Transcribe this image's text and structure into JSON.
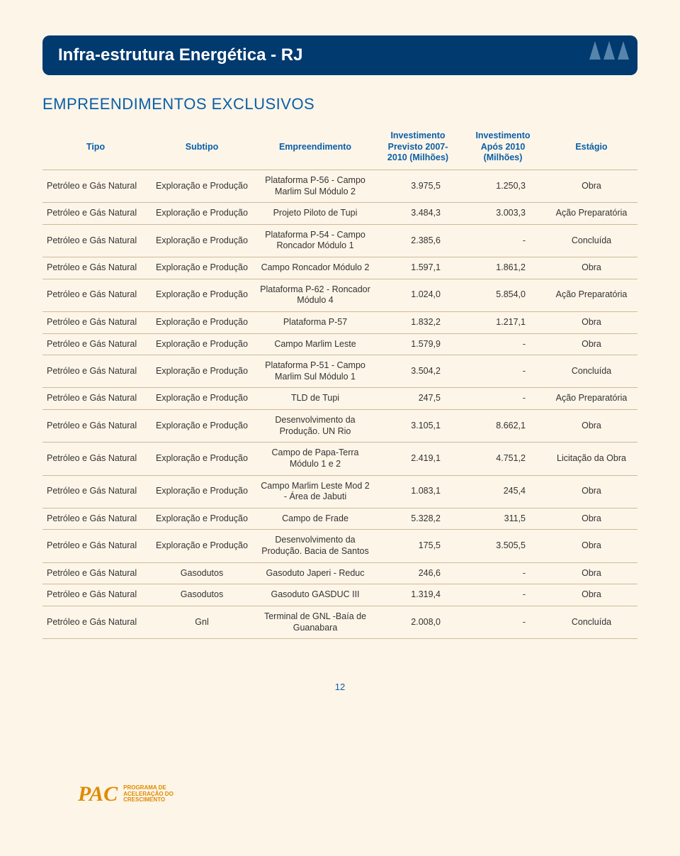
{
  "header_title": "Infra-estrutura Energética - RJ",
  "sub_heading": "EMPREENDIMENTOS EXCLUSIVOS",
  "columns": {
    "tipo": "Tipo",
    "subtipo": "Subtipo",
    "empreendimento": "Empreendimento",
    "inv_previsto": "Investimento Previsto 2007-2010 (Milhões)",
    "inv_apos": "Investimento Após 2010 (Milhões)",
    "estagio": "Estágio"
  },
  "rows": [
    {
      "tipo": "Petróleo e Gás Natural",
      "subtipo": "Exploração e Produção",
      "emp": "Plataforma P-56 - Campo Marlim Sul Módulo 2",
      "v1": "3.975,5",
      "v2": "1.250,3",
      "est": "Obra"
    },
    {
      "tipo": "Petróleo e Gás Natural",
      "subtipo": "Exploração e Produção",
      "emp": "Projeto Piloto de Tupi",
      "v1": "3.484,3",
      "v2": "3.003,3",
      "est": "Ação Preparatória"
    },
    {
      "tipo": "Petróleo e Gás Natural",
      "subtipo": "Exploração e Produção",
      "emp": "Plataforma P-54 - Campo Roncador Módulo 1",
      "v1": "2.385,6",
      "v2": "-",
      "est": "Concluída"
    },
    {
      "tipo": "Petróleo e Gás Natural",
      "subtipo": "Exploração e Produção",
      "emp": "Campo Roncador Módulo 2",
      "v1": "1.597,1",
      "v2": "1.861,2",
      "est": "Obra"
    },
    {
      "tipo": "Petróleo e Gás Natural",
      "subtipo": "Exploração e Produção",
      "emp": "Plataforma P-62 - Roncador Módulo 4",
      "v1": "1.024,0",
      "v2": "5.854,0",
      "est": "Ação Preparatória"
    },
    {
      "tipo": "Petróleo e Gás Natural",
      "subtipo": "Exploração e Produção",
      "emp": "Plataforma P-57",
      "v1": "1.832,2",
      "v2": "1.217,1",
      "est": "Obra"
    },
    {
      "tipo": "Petróleo e Gás Natural",
      "subtipo": "Exploração e Produção",
      "emp": "Campo Marlim Leste",
      "v1": "1.579,9",
      "v2": "-",
      "est": "Obra"
    },
    {
      "tipo": "Petróleo e Gás Natural",
      "subtipo": "Exploração e Produção",
      "emp": "Plataforma P-51 - Campo Marlim Sul Módulo 1",
      "v1": "3.504,2",
      "v2": "-",
      "est": "Concluída"
    },
    {
      "tipo": "Petróleo e Gás Natural",
      "subtipo": "Exploração e Produção",
      "emp": "TLD de Tupi",
      "v1": "247,5",
      "v2": "-",
      "est": "Ação Preparatória"
    },
    {
      "tipo": "Petróleo e Gás Natural",
      "subtipo": "Exploração e Produção",
      "emp": "Desenvolvimento da Produção. UN Rio",
      "v1": "3.105,1",
      "v2": "8.662,1",
      "est": "Obra"
    },
    {
      "tipo": "Petróleo e Gás Natural",
      "subtipo": "Exploração e Produção",
      "emp": "Campo de Papa-Terra Módulo 1 e 2",
      "v1": "2.419,1",
      "v2": "4.751,2",
      "est": "Licitação da Obra"
    },
    {
      "tipo": "Petróleo e Gás Natural",
      "subtipo": "Exploração e Produção",
      "emp": "Campo Marlim Leste Mod 2 - Área de Jabuti",
      "v1": "1.083,1",
      "v2": "245,4",
      "est": "Obra"
    },
    {
      "tipo": "Petróleo e Gás Natural",
      "subtipo": "Exploração e Produção",
      "emp": "Campo de Frade",
      "v1": "5.328,2",
      "v2": "311,5",
      "est": "Obra"
    },
    {
      "tipo": "Petróleo e Gás Natural",
      "subtipo": "Exploração e Produção",
      "emp": "Desenvolvimento da Produção. Bacia de Santos",
      "v1": "175,5",
      "v2": "3.505,5",
      "est": "Obra"
    },
    {
      "tipo": "Petróleo e Gás Natural",
      "subtipo": "Gasodutos",
      "emp": "Gasoduto Japeri - Reduc",
      "v1": "246,6",
      "v2": "-",
      "est": "Obra"
    },
    {
      "tipo": "Petróleo e Gás Natural",
      "subtipo": "Gasodutos",
      "emp": "Gasoduto GASDUC III",
      "v1": "1.319,4",
      "v2": "-",
      "est": "Obra"
    },
    {
      "tipo": "Petróleo e Gás Natural",
      "subtipo": "Gnl",
      "emp": "Terminal de GNL -Baía de Guanabara",
      "v1": "2.008,0",
      "v2": "-",
      "est": "Concluída"
    }
  ],
  "page_number": "12",
  "logo": {
    "acronym": "PAC",
    "line1": "PROGRAMA DE",
    "line2": "ACELERAÇÃO DO",
    "line3": "CRESCIMENTO"
  },
  "colors": {
    "page_bg": "#fdf5e8",
    "banner_bg": "#003a6f",
    "accent_blue": "#0a5fa8",
    "row_border": "#cdbb9a",
    "logo_orange": "#e08a00"
  }
}
